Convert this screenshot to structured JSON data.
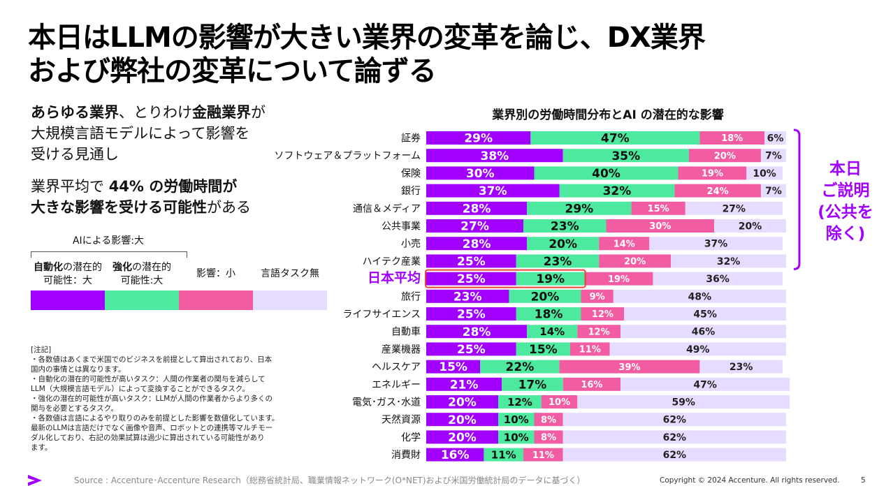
{
  "title_lines": [
    "本日はLLMの影響が大きい業界の変革を論じ、DX業界",
    "および弊社の変革について論ずる"
  ],
  "intro": {
    "line1_b1": "あらゆる業界",
    "line1_t1": "、とりわけ",
    "line1_b2": "金融業界",
    "line1_t2": "が",
    "line2": "大規模言語モデルによって影響を",
    "line3": "受ける見通し"
  },
  "intro2": {
    "t1": "業界平均で ",
    "b1": "44% の労働時間が",
    "b2": "大きな影響を受ける可能性",
    "t2": "がある"
  },
  "legend": {
    "group_label": "AIによる影響:大",
    "items": [
      {
        "bold": "自動化",
        "line1_rest": "の潜在的",
        "line2": "可能性：大"
      },
      {
        "bold": "強化",
        "line1_rest": "の潜在的",
        "line2": "可能性:大"
      },
      {
        "bold": "",
        "line1_rest": "影響：小",
        "line2": ""
      },
      {
        "bold": "",
        "line1_rest": "言語タスク無",
        "line2": ""
      }
    ]
  },
  "notes": [
    "[注記]",
    "・各数値はあくまで米国でのビジネスを前提として算出されており、日本",
    "  国内の事情とは異なります。",
    "・自動化の潜在的可能性が高いタスク：人間の作業者の関与を減らして",
    "  LLM（大規模言語モデル）によって変換することができるタスク。",
    "・強化の潜在的可能性が高いタスク：LLMが人間の作業者からより多くの",
    "  関与を必要とするタスク。",
    "・各数値は言語によるやり取りのみを前提とした影響を数値化しています。",
    "  最新のLLMは言語だけでなく画像や音声、ロボットとの連携等マルチモー",
    "  ダル化しており、右記の効果試算は過少に算出されている可能性があり",
    "  ます。"
  ],
  "side_label": [
    "本日",
    "ご説明",
    "(公共を",
    "除く)"
  ],
  "source": "Source : Accenture･Accenture Research（総務省統計局、職業情報ネットワーク(O*NET)および米国労働統計局のデータに基づく）",
  "copyright": "Copyright © 2024 Accenture. All rights reserved.",
  "page_number": "5",
  "colors": {
    "automation": "#a100ff",
    "augmentation": "#4ce99e",
    "low": "#f25ca2",
    "none": "#e6dcff",
    "accent": "#a100ff",
    "highlight_box": "#e8423a"
  },
  "chart_data": {
    "type": "bar",
    "orientation": "horizontal",
    "stacked": true,
    "title": "業界別の労働時間分布とAI の潜在的な影響",
    "xlim": [
      0,
      100
    ],
    "unit": "%",
    "highlight_category": "日本平均",
    "categories": [
      "証券",
      "ソフトウェア＆プラットフォーム",
      "保険",
      "銀行",
      "通信＆メディア",
      "公共事業",
      "小売",
      "ハイテク産業",
      "日本平均",
      "旅行",
      "ライフサイエンス",
      "自動車",
      "産業機器",
      "ヘルスケア",
      "エネルギー",
      "電気･ガス･水道",
      "天然資源",
      "化学",
      "消費財"
    ],
    "series": [
      {
        "name": "自動化の潜在的可能性：大",
        "values": [
          29,
          38,
          30,
          37,
          28,
          27,
          28,
          25,
          25,
          23,
          25,
          28,
          25,
          15,
          21,
          20,
          20,
          20,
          16
        ]
      },
      {
        "name": "強化の潜在的可能性:大",
        "values": [
          47,
          35,
          40,
          32,
          29,
          23,
          20,
          23,
          19,
          20,
          18,
          14,
          15,
          22,
          17,
          12,
          10,
          10,
          11
        ]
      },
      {
        "name": "影響：小",
        "values": [
          18,
          20,
          19,
          24,
          15,
          30,
          14,
          20,
          19,
          9,
          12,
          12,
          11,
          39,
          16,
          10,
          8,
          8,
          11
        ]
      },
      {
        "name": "言語タスク無",
        "values": [
          6,
          7,
          10,
          7,
          27,
          20,
          37,
          32,
          36,
          48,
          45,
          46,
          49,
          23,
          47,
          59,
          62,
          62,
          62
        ]
      }
    ]
  }
}
